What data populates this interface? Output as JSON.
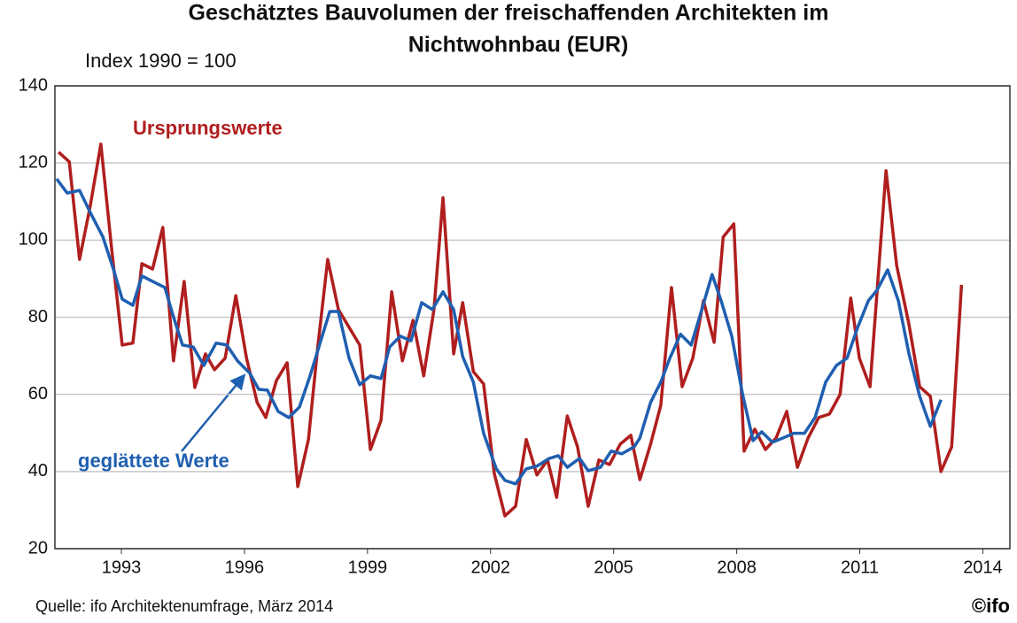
{
  "chart_data": {
    "type": "line",
    "title_lines": [
      "Geschätztes Bauvolumen der freischaffenden Architekten im",
      "Nichtwohnbau (EUR)"
    ],
    "subtitle": "Index 1990 = 100",
    "source": "Quelle: ifo Architektenumfrage, März 2014",
    "logo": "©ifo",
    "xlim": [
      1991.38,
      2014.66
    ],
    "xticks": [
      1993,
      1996,
      1999,
      2002,
      2005,
      2008,
      2011,
      2014
    ],
    "ylim": [
      20,
      140
    ],
    "yticks": [
      20,
      40,
      60,
      80,
      100,
      120,
      140
    ],
    "grid": true,
    "series": [
      {
        "name": "Ursprungswerte",
        "color": "#b01e1e",
        "x": [
          1991.47,
          1991.73,
          1991.98,
          1992.24,
          1992.5,
          1992.76,
          1993.02,
          1993.28,
          1993.5,
          1993.76,
          1994.01,
          1994.27,
          1994.53,
          1994.79,
          1995.05,
          1995.27,
          1995.53,
          1995.79,
          1996.05,
          1996.31,
          1996.52,
          1996.78,
          1997.04,
          1997.3,
          1997.56,
          1997.78,
          1998.03,
          1998.29,
          1998.55,
          1998.81,
          1999.07,
          1999.33,
          1999.59,
          1999.85,
          2000.11,
          2000.37,
          2000.62,
          2000.84,
          2001.1,
          2001.32,
          2001.58,
          2001.83,
          2002.09,
          2002.35,
          2002.61,
          2002.87,
          2003.13,
          2003.39,
          2003.61,
          2003.87,
          2004.12,
          2004.38,
          2004.64,
          2004.9,
          2005.16,
          2005.42,
          2005.64,
          2005.9,
          2006.15,
          2006.41,
          2006.67,
          2006.93,
          2007.19,
          2007.45,
          2007.67,
          2007.93,
          2008.18,
          2008.44,
          2008.7,
          2008.96,
          2009.22,
          2009.48,
          2009.74,
          2010.0,
          2010.26,
          2010.52,
          2010.78,
          2010.99,
          2011.25,
          2011.64,
          2011.9,
          2012.2,
          2012.46,
          2012.72,
          2012.98,
          2013.24,
          2013.48
        ],
        "values": [
          122.8,
          120.3,
          95,
          108.8,
          124.9,
          98,
          72.8,
          73.3,
          93.9,
          92.5,
          103.3,
          68.7,
          89.3,
          61.8,
          70.5,
          66.4,
          69.4,
          85.6,
          69.4,
          57.9,
          54,
          63.6,
          68.2,
          36.1,
          48.3,
          71.6,
          95,
          82,
          77.4,
          72.8,
          45.7,
          53.3,
          86.6,
          68.7,
          79.2,
          64.8,
          82,
          111,
          70.5,
          83.8,
          65.9,
          62.7,
          39.5,
          28.5,
          31,
          48.3,
          39.1,
          43,
          33.3,
          54.4,
          46.4,
          31,
          43,
          41.8,
          47.1,
          49.4,
          37.9,
          47.1,
          57.2,
          87.7,
          62,
          69.4,
          84.3,
          73.5,
          100.8,
          104.2,
          45.3,
          51,
          45.7,
          48.7,
          55.6,
          41.1,
          48.7,
          54,
          54.9,
          60,
          85,
          69.4,
          62,
          118,
          93.4,
          78.1,
          62,
          59.5,
          40,
          46.4,
          88.4
        ]
      },
      {
        "name": "geglättete Werte",
        "color": "#1f5fb0",
        "x": [
          1991.42,
          1991.68,
          1991.98,
          1992.24,
          1992.55,
          1992.81,
          1993.02,
          1993.28,
          1993.5,
          1993.76,
          1994.06,
          1994.27,
          1994.49,
          1994.75,
          1995.01,
          1995.31,
          1995.57,
          1995.83,
          1996.13,
          1996.35,
          1996.56,
          1996.82,
          1997.08,
          1997.34,
          1997.6,
          1997.86,
          1998.08,
          1998.29,
          1998.55,
          1998.81,
          1999.07,
          1999.33,
          1999.54,
          1999.8,
          2000.06,
          2000.32,
          2000.58,
          2000.84,
          2001.1,
          2001.32,
          2001.58,
          2001.83,
          2002.14,
          2002.35,
          2002.61,
          2002.87,
          2003.13,
          2003.43,
          2003.65,
          2003.87,
          2004.17,
          2004.38,
          2004.68,
          2004.94,
          2005.2,
          2005.5,
          2005.64,
          2005.9,
          2006.15,
          2006.37,
          2006.63,
          2006.89,
          2007.15,
          2007.4,
          2007.62,
          2007.88,
          2008.14,
          2008.4,
          2008.61,
          2008.87,
          2009.13,
          2009.39,
          2009.65,
          2009.91,
          2010.17,
          2010.43,
          2010.69,
          2010.95,
          2011.21,
          2011.42,
          2011.68,
          2011.94,
          2012.2,
          2012.46,
          2012.72,
          2012.98
        ],
        "values": [
          115.9,
          112.2,
          112.9,
          107.2,
          100.8,
          92.3,
          84.7,
          83.1,
          90.7,
          89.3,
          87.7,
          80.1,
          72.8,
          72.3,
          67.5,
          73.3,
          72.8,
          68.7,
          65.5,
          61.3,
          61.1,
          55.6,
          54,
          56.7,
          64.8,
          73.9,
          81.5,
          81.5,
          69.4,
          62.5,
          64.8,
          64.1,
          72.3,
          75.1,
          73.9,
          83.8,
          82,
          86.6,
          82,
          69.8,
          63.2,
          49.9,
          40.7,
          37.7,
          36.8,
          40.7,
          41.4,
          43.4,
          44.1,
          41.1,
          43.4,
          40.2,
          41.1,
          45.3,
          44.6,
          46.4,
          48.7,
          57.9,
          63.2,
          69.4,
          75.6,
          72.8,
          82,
          91.1,
          84.3,
          75.1,
          60.2,
          48,
          50.3,
          47.6,
          48.7,
          49.9,
          49.9,
          54,
          63.2,
          67.5,
          69.4,
          77.4,
          84.3,
          87,
          92.3,
          84.3,
          70.5,
          59.5,
          51.7,
          58.6
        ]
      }
    ]
  }
}
